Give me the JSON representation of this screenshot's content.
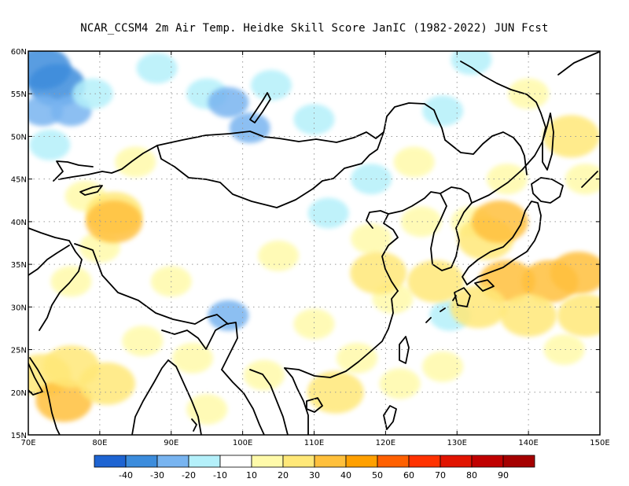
{
  "title": "NCAR_CCSM4  2m Air Temp. Heidke Skill Score JanIC (1982-2022) JUN Fcst",
  "map": {
    "lon_range": [
      70,
      150
    ],
    "lat_range": [
      15,
      60
    ],
    "lon_ticks": [
      {
        "value": 70,
        "label": "70E"
      },
      {
        "value": 80,
        "label": "80E"
      },
      {
        "value": 90,
        "label": "90E"
      },
      {
        "value": 100,
        "label": "100E"
      },
      {
        "value": 110,
        "label": "110E"
      },
      {
        "value": 120,
        "label": "120E"
      },
      {
        "value": 130,
        "label": "130E"
      },
      {
        "value": 140,
        "label": "140E"
      },
      {
        "value": 150,
        "label": "150E"
      }
    ],
    "lat_ticks": [
      {
        "value": 15,
        "label": "15N"
      },
      {
        "value": 20,
        "label": "20N"
      },
      {
        "value": 25,
        "label": "25N"
      },
      {
        "value": 30,
        "label": "30N"
      },
      {
        "value": 35,
        "label": "35N"
      },
      {
        "value": 40,
        "label": "40N"
      },
      {
        "value": 45,
        "label": "45N"
      },
      {
        "value": 50,
        "label": "50N"
      },
      {
        "value": 55,
        "label": "55N"
      },
      {
        "value": 60,
        "label": "60N"
      }
    ],
    "grid": "dotted",
    "colors": {
      "frame": "#000000",
      "coast": "#000000",
      "grid": "#9a9a9a"
    }
  },
  "colorbar": {
    "colors": [
      "#1e64d2",
      "#3c8cdc",
      "#78b4f0",
      "#b4f0fa",
      "#ffffff",
      "#fffaaa",
      "#ffe878",
      "#ffc03c",
      "#ffa000",
      "#ff6000",
      "#ff3200",
      "#e11400",
      "#c00000",
      "#a50000"
    ],
    "labels": [
      "-40",
      "-30",
      "-20",
      "-10",
      "10",
      "20",
      "30",
      "40",
      "50",
      "60",
      "70",
      "80",
      "90"
    ]
  },
  "field": [
    {
      "lon": 74,
      "lat": 56,
      "level": -30
    },
    {
      "lon": 72,
      "lat": 58,
      "level": -30
    },
    {
      "lon": 76,
      "lat": 53,
      "level": -20
    },
    {
      "lon": 72,
      "lat": 53,
      "level": -20
    },
    {
      "lon": 79,
      "lat": 55,
      "level": -10
    },
    {
      "lon": 73,
      "lat": 49,
      "level": -10
    },
    {
      "lon": 88,
      "lat": 58,
      "level": -10
    },
    {
      "lon": 95,
      "lat": 55,
      "level": -10
    },
    {
      "lon": 98,
      "lat": 54,
      "level": -20
    },
    {
      "lon": 101,
      "lat": 51,
      "level": -20
    },
    {
      "lon": 104,
      "lat": 56,
      "level": -10
    },
    {
      "lon": 110,
      "lat": 52,
      "level": -10
    },
    {
      "lon": 118,
      "lat": 45,
      "level": -10
    },
    {
      "lon": 112,
      "lat": 41,
      "level": -10
    },
    {
      "lon": 132,
      "lat": 59,
      "level": -10
    },
    {
      "lon": 128,
      "lat": 53,
      "level": -10
    },
    {
      "lon": 98,
      "lat": 29,
      "level": -20
    },
    {
      "lon": 129,
      "lat": 29,
      "level": -10
    },
    {
      "lon": 85,
      "lat": 47,
      "level": 10
    },
    {
      "lon": 78,
      "lat": 43,
      "level": 10
    },
    {
      "lon": 90,
      "lat": 33,
      "level": 10
    },
    {
      "lon": 105,
      "lat": 36,
      "level": 10
    },
    {
      "lon": 118,
      "lat": 38,
      "level": 10
    },
    {
      "lon": 124,
      "lat": 47,
      "level": 10
    },
    {
      "lon": 140,
      "lat": 55,
      "level": 20
    },
    {
      "lon": 146,
      "lat": 50,
      "level": 30
    },
    {
      "lon": 148,
      "lat": 45,
      "level": 20
    },
    {
      "lon": 80,
      "lat": 37,
      "level": 20
    },
    {
      "lon": 76,
      "lat": 33,
      "level": 20
    },
    {
      "lon": 82,
      "lat": 41,
      "level": 30
    },
    {
      "lon": 86,
      "lat": 26,
      "level": 20
    },
    {
      "lon": 93,
      "lat": 24,
      "level": 20
    },
    {
      "lon": 95,
      "lat": 18,
      "level": 20
    },
    {
      "lon": 103,
      "lat": 22,
      "level": 20
    },
    {
      "lon": 110,
      "lat": 28,
      "level": 20
    },
    {
      "lon": 113,
      "lat": 20,
      "level": 30
    },
    {
      "lon": 116,
      "lat": 24,
      "level": 20
    },
    {
      "lon": 121,
      "lat": 31,
      "level": 20
    },
    {
      "lon": 125,
      "lat": 40,
      "level": 20
    },
    {
      "lon": 132,
      "lat": 40,
      "level": 20
    },
    {
      "lon": 137,
      "lat": 45,
      "level": 20
    },
    {
      "lon": 122,
      "lat": 21,
      "level": 20
    },
    {
      "lon": 128,
      "lat": 23,
      "level": 20
    },
    {
      "lon": 145,
      "lat": 25,
      "level": 20
    },
    {
      "lon": 72,
      "lat": 22,
      "level": 30
    },
    {
      "lon": 75,
      "lat": 19,
      "level": 40
    },
    {
      "lon": 76,
      "lat": 23,
      "level": 30
    },
    {
      "lon": 81,
      "lat": 21,
      "level": 30
    },
    {
      "lon": 127,
      "lat": 33,
      "level": 30
    },
    {
      "lon": 134,
      "lat": 38,
      "level": 30
    },
    {
      "lon": 137,
      "lat": 33,
      "level": 40
    },
    {
      "lon": 143,
      "lat": 33,
      "level": 40
    },
    {
      "lon": 147,
      "lat": 34,
      "level": 40
    },
    {
      "lon": 140,
      "lat": 29,
      "level": 30
    },
    {
      "lon": 133,
      "lat": 30,
      "level": 30
    },
    {
      "lon": 148,
      "lat": 29,
      "level": 30
    },
    {
      "lon": 119,
      "lat": 34,
      "level": 30
    },
    {
      "lon": 82,
      "lat": 40,
      "level": 40
    },
    {
      "lon": 136,
      "lat": 40,
      "level": 40
    }
  ]
}
